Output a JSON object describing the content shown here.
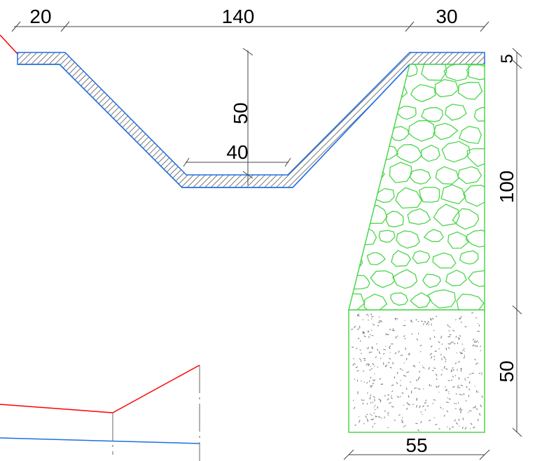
{
  "drawing": {
    "dimensions": {
      "top_left_width": "20",
      "channel_top_width": "140",
      "top_right_width": "30",
      "channel_depth": "50",
      "channel_bottom_width": "40",
      "lining_thickness": "5",
      "wall_height": "100",
      "foundation_height": "50",
      "foundation_width": "55"
    },
    "colors": {
      "ground_line": "#ff0000",
      "lining_outline": "#1f6fe0",
      "masonry": "#4cd64c",
      "dimension_line": "#444444",
      "hatch": "#555555",
      "concrete_speckle": "#777777"
    }
  }
}
